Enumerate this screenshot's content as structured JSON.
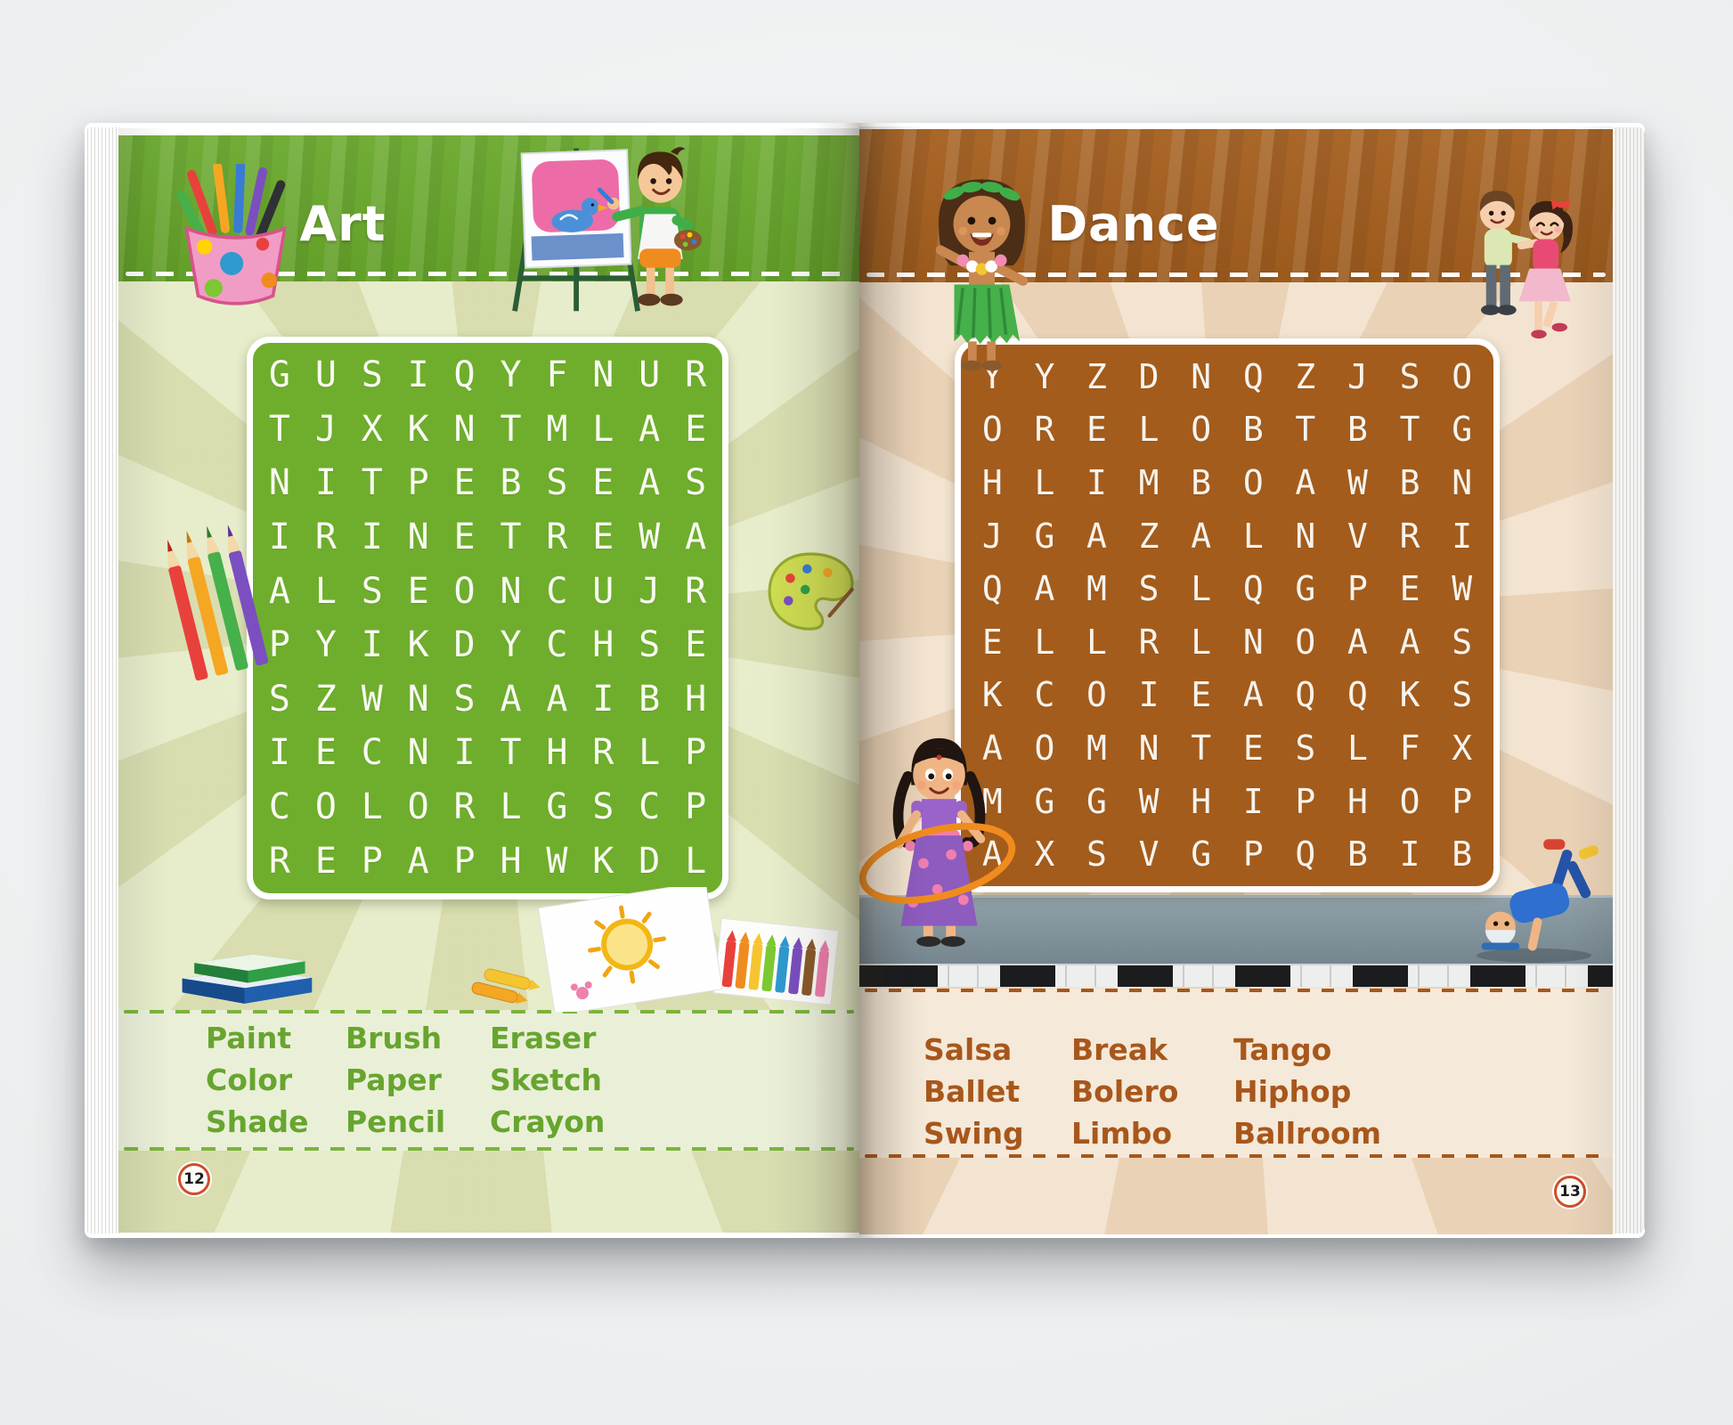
{
  "left_page": {
    "title": "Art",
    "page_number": "12",
    "grid_rows": [
      "GUSIQYFNUR",
      "TJXKNTMLAE",
      "NITPEBSEAS",
      "IRINETREWA",
      "ALSEONCUJR",
      "PYIKDYCHSE",
      "SZWNSAAIBH",
      "IECNITHRLP",
      "COLORLGSCP",
      "REPAPHWKDL"
    ],
    "word_columns": [
      [
        "Paint",
        "Color",
        "Shade"
      ],
      [
        "Brush",
        "Paper",
        "Pencil"
      ],
      [
        "Eraser",
        "Sketch",
        "Crayon"
      ]
    ],
    "colors": {
      "header": "#68a82b",
      "grid": "#6fae2c",
      "body": "#e7edca",
      "band": "#eaf0d8",
      "dash": "#7cb43e",
      "word_text": "#67a52f",
      "title_text": "#ffffff",
      "letter": "#f8faf1"
    },
    "illustrations": [
      "pencil-cup",
      "boy-painting-at-easel",
      "colored-pencils",
      "paint-palette",
      "stacked-books",
      "sun-drawing-paper-with-crayons"
    ]
  },
  "right_page": {
    "title": "Dance",
    "page_number": "13",
    "grid_rows": [
      "YYZDNQZJSO",
      "ORELOBTBTG",
      "HLIMBOAWBN",
      "JGAZALNVRI",
      "QAMSLQGPEW",
      "ELLRLNOAAS",
      "KCOIEAQQKS",
      "AOMNTESLFX",
      "MGGWHIPHOP",
      "AXSVGPQBIB"
    ],
    "word_columns": [
      [
        "Salsa",
        "Ballet",
        "Swing"
      ],
      [
        "Break",
        "Bolero",
        "Limbo"
      ],
      [
        "Tango",
        "Hiphop",
        "Ballroom"
      ]
    ],
    "colors": {
      "header": "#a55f1e",
      "grid": "#a45c1c",
      "body": "#f3e4d1",
      "band": "#f5e9d9",
      "dash": "#a8571c",
      "word_text": "#a8571c",
      "title_text": "#ffffff",
      "letter": "#f7f3ec"
    },
    "illustrations": [
      "hula-dancer-girl",
      "dancing-kids-couple",
      "girl-with-hula-hoop",
      "breakdancing-boy",
      "piano-keys-floor"
    ]
  }
}
